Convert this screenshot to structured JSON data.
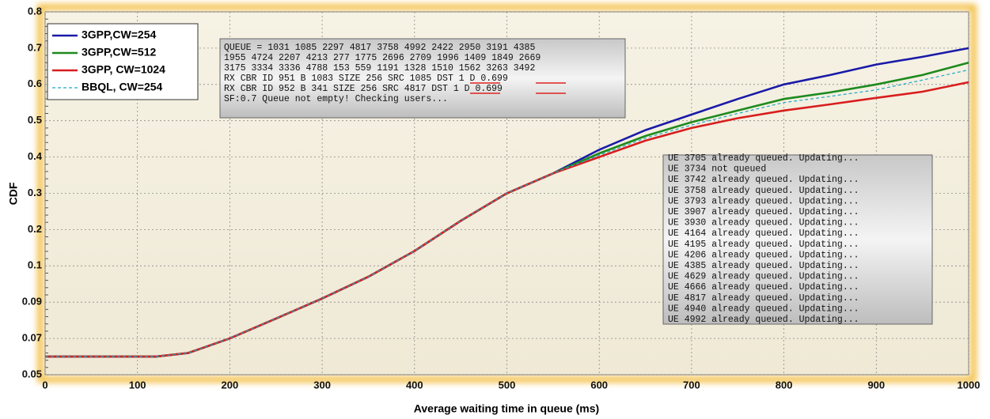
{
  "chart_data": {
    "type": "line",
    "x_label": "Average waiting time in queue (ms)",
    "y_label": "CDF",
    "x": [
      0,
      120,
      155,
      200,
      250,
      300,
      350,
      400,
      450,
      500,
      550,
      600,
      650,
      700,
      750,
      800,
      850,
      900,
      950,
      1000
    ],
    "series": [
      {
        "name": "3GPP,CW=254",
        "color": "#1a1aa8",
        "values": [
          0.06,
          0.06,
          0.062,
          0.07,
          0.081,
          0.091,
          0.097,
          0.141,
          0.224,
          0.3,
          0.355,
          0.42,
          0.474,
          0.517,
          0.56,
          0.6,
          0.626,
          0.655,
          0.676,
          0.7
        ]
      },
      {
        "name": "3GPP,CW=512",
        "color": "#1e8a1e",
        "values": [
          0.06,
          0.06,
          0.062,
          0.07,
          0.081,
          0.091,
          0.097,
          0.141,
          0.224,
          0.3,
          0.355,
          0.41,
          0.458,
          0.496,
          0.528,
          0.56,
          0.578,
          0.6,
          0.626,
          0.66
        ]
      },
      {
        "name": "3GPP, CW=1024",
        "color": "#d81e1e",
        "values": [
          0.06,
          0.06,
          0.062,
          0.07,
          0.081,
          0.091,
          0.097,
          0.141,
          0.224,
          0.3,
          0.355,
          0.4,
          0.445,
          0.48,
          0.507,
          0.528,
          0.545,
          0.563,
          0.58,
          0.606
        ]
      },
      {
        "name": "BBQL, CW=254",
        "color": "#1ca8c8",
        "dashed": true,
        "values": [
          0.06,
          0.06,
          0.062,
          0.07,
          0.081,
          0.091,
          0.097,
          0.141,
          0.224,
          0.3,
          0.355,
          0.405,
          0.452,
          0.488,
          0.52,
          0.55,
          0.567,
          0.585,
          0.612,
          0.64
        ]
      }
    ],
    "xlim": [
      0,
      1000
    ],
    "xticks": [
      0,
      100,
      200,
      300,
      400,
      500,
      600,
      700,
      800,
      900,
      1000
    ],
    "ylim": [
      0.05,
      0.8
    ],
    "yticks": [
      0.05,
      0.07,
      0.09,
      0.1,
      0.2,
      0.3,
      0.4,
      0.5,
      0.6,
      0.7,
      0.8
    ],
    "grid": true,
    "legend": "upper left",
    "annotations": {
      "queue_box": [
        "QUEUE = 1031 1085 2297 4817 3758 4992 2422 2950 3191 4385",
        "1955 4724 2207 4213 277 1775 2696 2709 1996 1409 1849 2669",
        "3175 3334 3336 4788 153 559 1191 1328 1510 1562 3263 3492",
        "RX CBR ID 951 B 1083 SIZE 256 SRC 1085 DST 1 D 0.699",
        "RX CBR ID 952 B 341 SIZE 256 SRC 4817 DST 1 D 0.699",
        "SF:0.7 Queue not empty! Checking users..."
      ],
      "ue_box": [
        "UE 3705 already queued. Updating...",
        "UE 3734 not queued",
        "UE 3742 already queued. Updating...",
        "UE 3758 already queued. Updating...",
        "UE 3793 already queued. Updating...",
        "UE 3907 already queued. Updating...",
        "UE 3930 already queued. Updating...",
        "UE 4164 already queued. Updating...",
        "UE 4195 already queued. Updating...",
        "UE 4206 already queued. Updating...",
        "UE 4385 already queued. Updating...",
        "UE 4629 already queued. Updating...",
        "UE 4666 already queued. Updating...",
        "UE 4817 already queued. Updating...",
        "UE 4940 already queued. Updating...",
        "UE 4992 already queued. Updating..."
      ]
    }
  }
}
